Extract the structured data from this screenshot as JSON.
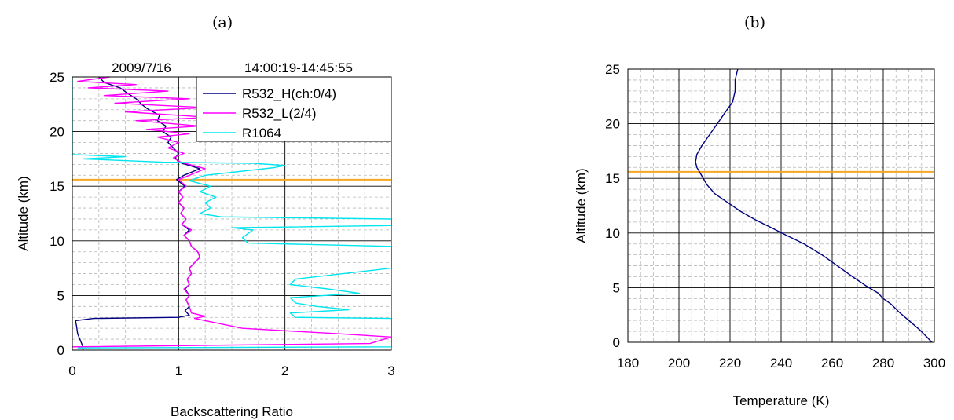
{
  "panels": {
    "a_label": "(a)",
    "b_label": "(b)"
  },
  "chart_data": [
    {
      "type": "line",
      "panel": "(a)",
      "title_date": "2009/7/16",
      "title_time": "14:00:19-14:45:55",
      "xlabel": "Backscattering Ratio",
      "ylabel": "Altitude (km)",
      "xlim": [
        0,
        3
      ],
      "ylim": [
        0,
        25
      ],
      "xticks": [
        "0",
        "1",
        "2",
        "3"
      ],
      "yticks": [
        "0",
        "5",
        "10",
        "15",
        "20",
        "25"
      ],
      "grid": true,
      "legend_position": "top-right",
      "reference_line": {
        "y": 15.6,
        "color": "#f5a623"
      },
      "series": [
        {
          "name": "R532_H(ch:0/4)",
          "color": "#000080",
          "points": [
            [
              0.1,
              0
            ],
            [
              0.1,
              0.3
            ],
            [
              0.08,
              0.8
            ],
            [
              0.05,
              1.5
            ],
            [
              0.04,
              2.2
            ],
            [
              0.03,
              2.7
            ],
            [
              0.2,
              2.9
            ],
            [
              1.0,
              3.0
            ],
            [
              1.1,
              3.2
            ],
            [
              1.06,
              3.6
            ],
            [
              1.1,
              4.0
            ],
            [
              1.07,
              4.6
            ],
            [
              1.1,
              5.0
            ],
            [
              1.06,
              5.6
            ],
            [
              1.1,
              6.0
            ],
            [
              1.08,
              6.5
            ],
            [
              1.12,
              7.0
            ],
            [
              1.1,
              7.5
            ],
            [
              1.15,
              8.0
            ],
            [
              1.2,
              8.5
            ],
            [
              1.18,
              9.0
            ],
            [
              1.12,
              9.5
            ],
            [
              1.1,
              10.0
            ],
            [
              1.05,
              10.5
            ],
            [
              1.1,
              11.0
            ],
            [
              1.03,
              11.5
            ],
            [
              1.07,
              12.0
            ],
            [
              1.02,
              12.5
            ],
            [
              1.05,
              13.0
            ],
            [
              1.0,
              13.5
            ],
            [
              1.04,
              14.0
            ],
            [
              1.0,
              14.5
            ],
            [
              1.06,
              15.0
            ],
            [
              0.98,
              15.6
            ],
            [
              1.05,
              16.0
            ],
            [
              1.2,
              16.6
            ],
            [
              1.0,
              17.2
            ],
            [
              0.97,
              17.6
            ],
            [
              1.0,
              18.0
            ],
            [
              0.95,
              18.5
            ],
            [
              0.9,
              19.0
            ],
            [
              0.93,
              19.5
            ],
            [
              0.85,
              20.0
            ],
            [
              0.88,
              20.5
            ],
            [
              0.8,
              21.0
            ],
            [
              0.82,
              21.5
            ],
            [
              0.72,
              22.0
            ],
            [
              0.65,
              22.5
            ],
            [
              0.6,
              23.0
            ],
            [
              0.52,
              23.5
            ],
            [
              0.45,
              24.0
            ],
            [
              0.3,
              24.5
            ],
            [
              0.25,
              25.0
            ]
          ]
        },
        {
          "name": "R532_L(2/4)",
          "color": "#ff00ff",
          "points": [
            [
              0,
              0.3
            ],
            [
              2.8,
              0.6
            ],
            [
              3.0,
              1.2
            ],
            [
              2.5,
              1.5
            ],
            [
              1.6,
              2.0
            ],
            [
              1.25,
              2.7
            ],
            [
              1.15,
              2.9
            ],
            [
              1.25,
              3.1
            ],
            [
              1.12,
              3.4
            ],
            [
              1.1,
              4.0
            ],
            [
              1.07,
              4.6
            ],
            [
              1.1,
              5.0
            ],
            [
              1.05,
              5.6
            ],
            [
              1.1,
              6.0
            ],
            [
              1.08,
              6.5
            ],
            [
              1.12,
              7.0
            ],
            [
              1.1,
              7.5
            ],
            [
              1.15,
              8.0
            ],
            [
              1.2,
              8.5
            ],
            [
              1.18,
              9.0
            ],
            [
              1.12,
              9.5
            ],
            [
              1.1,
              10.0
            ],
            [
              1.05,
              10.5
            ],
            [
              1.12,
              11.0
            ],
            [
              1.03,
              11.5
            ],
            [
              1.07,
              12.0
            ],
            [
              1.02,
              12.5
            ],
            [
              1.05,
              13.0
            ],
            [
              1.0,
              13.5
            ],
            [
              1.04,
              14.0
            ],
            [
              1.0,
              14.5
            ],
            [
              1.07,
              15.0
            ],
            [
              1.0,
              15.6
            ],
            [
              1.1,
              16.0
            ],
            [
              1.25,
              16.6
            ],
            [
              1.02,
              17.2
            ],
            [
              0.95,
              17.6
            ],
            [
              1.05,
              18.0
            ],
            [
              0.9,
              18.5
            ],
            [
              1.0,
              19.0
            ],
            [
              0.8,
              19.5
            ],
            [
              1.1,
              19.8
            ],
            [
              0.7,
              20.2
            ],
            [
              1.2,
              20.5
            ],
            [
              0.6,
              21.0
            ],
            [
              1.3,
              21.3
            ],
            [
              0.5,
              21.8
            ],
            [
              1.25,
              22.2
            ],
            [
              0.4,
              22.6
            ],
            [
              1.1,
              23.0
            ],
            [
              0.3,
              23.3
            ],
            [
              0.9,
              23.7
            ],
            [
              0.15,
              24.0
            ],
            [
              0.6,
              24.3
            ],
            [
              0.05,
              24.6
            ],
            [
              0.35,
              25.0
            ]
          ]
        },
        {
          "name": "R1064",
          "color": "#00e5ee",
          "points": [
            [
              0.05,
              0.2
            ],
            [
              3.0,
              0.3
            ],
            [
              3.0,
              2.9
            ],
            [
              2.1,
              3.0
            ],
            [
              2.05,
              3.4
            ],
            [
              2.6,
              3.7
            ],
            [
              2.3,
              4.0
            ],
            [
              2.1,
              4.3
            ],
            [
              2.05,
              4.8
            ],
            [
              2.7,
              5.2
            ],
            [
              2.4,
              5.6
            ],
            [
              2.05,
              6.0
            ],
            [
              2.1,
              6.5
            ],
            [
              3.0,
              7.5
            ],
            [
              3.0,
              9.5
            ],
            [
              1.65,
              9.8
            ],
            [
              1.6,
              10.3
            ],
            [
              1.7,
              11.0
            ],
            [
              1.5,
              11.2
            ],
            [
              3.0,
              11.4
            ],
            [
              3.0,
              12.0
            ],
            [
              1.4,
              12.2
            ],
            [
              1.2,
              12.5
            ],
            [
              1.3,
              13.0
            ],
            [
              1.25,
              13.5
            ],
            [
              1.35,
              14.0
            ],
            [
              1.2,
              14.5
            ],
            [
              1.3,
              15.0
            ],
            [
              1.1,
              15.5
            ],
            [
              1.25,
              16.0
            ],
            [
              1.9,
              16.7
            ],
            [
              2.0,
              16.9
            ],
            [
              1.7,
              17.1
            ],
            [
              0.85,
              17.2
            ],
            [
              0.6,
              17.3
            ],
            [
              0.1,
              17.5
            ],
            [
              0.5,
              17.7
            ],
            [
              0.0,
              17.9
            ],
            [
              0.0,
              25.0
            ]
          ]
        }
      ]
    },
    {
      "type": "line",
      "panel": "(b)",
      "xlabel": "Temperature (K)",
      "ylabel": "Altitude (km)",
      "xlim": [
        180,
        300
      ],
      "ylim": [
        0,
        25
      ],
      "xticks": [
        "180",
        "200",
        "220",
        "240",
        "260",
        "280",
        "300"
      ],
      "yticks": [
        "0",
        "5",
        "10",
        "15",
        "20",
        "25"
      ],
      "grid": true,
      "reference_line": {
        "y": 15.6,
        "color": "#f5a623"
      },
      "series": [
        {
          "color": "#000080",
          "points": [
            [
              299,
              0
            ],
            [
              297,
              0.5
            ],
            [
              294,
              1.2
            ],
            [
              290,
              2.0
            ],
            [
              286,
              2.8
            ],
            [
              283,
              3.5
            ],
            [
              280,
              4.0
            ],
            [
              278,
              4.5
            ],
            [
              273,
              5.2
            ],
            [
              268,
              6.0
            ],
            [
              262,
              7.0
            ],
            [
              256,
              8.0
            ],
            [
              249,
              9.0
            ],
            [
              242,
              9.8
            ],
            [
              236,
              10.5
            ],
            [
              230,
              11.2
            ],
            [
              224,
              12.0
            ],
            [
              219,
              12.8
            ],
            [
              214,
              13.6
            ],
            [
              211,
              14.4
            ],
            [
              209,
              15.2
            ],
            [
              207,
              16.0
            ],
            [
              206.5,
              16.5
            ],
            [
              207,
              17.2
            ],
            [
              209,
              18.0
            ],
            [
              212,
              19.0
            ],
            [
              215,
              20.0
            ],
            [
              218,
              21.0
            ],
            [
              221,
              22.0
            ],
            [
              222,
              23.0
            ],
            [
              222,
              24.0
            ],
            [
              223,
              25.0
            ]
          ]
        }
      ]
    }
  ]
}
